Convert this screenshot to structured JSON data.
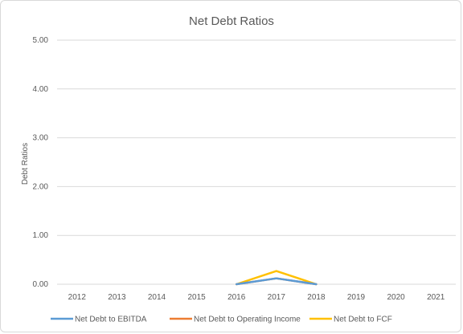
{
  "chart_data": {
    "type": "line",
    "title": "Net Debt Ratios",
    "xlabel": "",
    "ylabel": "Debt Ratios",
    "categories": [
      "2012",
      "2013",
      "2014",
      "2015",
      "2016",
      "2017",
      "2018",
      "2019",
      "2020",
      "2021"
    ],
    "ylim": [
      0,
      5
    ],
    "yticks": [
      "0.00",
      "1.00",
      "2.00",
      "3.00",
      "4.00",
      "5.00"
    ],
    "grid": true,
    "legend_position": "bottom",
    "series": [
      {
        "name": "Net Debt to EBITDA",
        "color": "#5b9bd5",
        "values": [
          null,
          null,
          null,
          null,
          0.0,
          0.12,
          0.0,
          null,
          null,
          null
        ]
      },
      {
        "name": "Net Debt to Operating Income",
        "color": "#ed7d31",
        "values": [
          null,
          null,
          null,
          null,
          0.0,
          0.12,
          0.0,
          null,
          null,
          null
        ]
      },
      {
        "name": "Net Debt to FCF",
        "color": "#ffc000",
        "values": [
          null,
          null,
          null,
          null,
          0.0,
          0.27,
          0.0,
          null,
          null,
          null
        ]
      }
    ]
  }
}
